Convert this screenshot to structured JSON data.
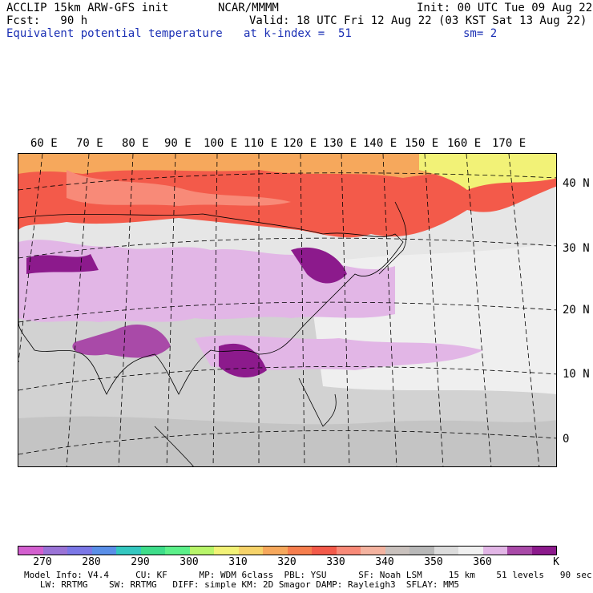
{
  "header": {
    "line1_left": "ACCLIP 15km ARW-GFS init",
    "line1_mid": "NCAR/MMMM",
    "line1_right": "Init: 00 UTC Tue 09 Aug 22",
    "line2_left": "Fcst:   90 h",
    "line2_right": "Valid: 18 UTC Fri 12 Aug 22 (03 KST Sat 13 Aug 22)",
    "line3_left": "Equivalent potential temperature",
    "line3_mid": "at k-index =  51",
    "line3_right": "sm= 2"
  },
  "map": {
    "longitude_labels": [
      "60 E",
      "70 E",
      "80 E",
      "90 E",
      "100 E",
      "110 E",
      "120 E",
      "130 E",
      "140 E",
      "150 E",
      "160 E",
      "170 E"
    ],
    "latitude_labels": [
      "40 N",
      "30 N",
      "20 N",
      "10 N",
      "0"
    ]
  },
  "colorbar": {
    "unit": "K",
    "tick_labels": [
      "270",
      "280",
      "290",
      "300",
      "310",
      "320",
      "330",
      "340",
      "350",
      "360"
    ],
    "colors": [
      "#d35fcf",
      "#9a73d6",
      "#7b77e6",
      "#5a8fe8",
      "#34c7c0",
      "#3edd8a",
      "#5cf08a",
      "#b8f56a",
      "#f2f277",
      "#f6d36a",
      "#f6a85c",
      "#f67e4e",
      "#f35a4a",
      "#f88a78",
      "#f4b3a0",
      "#c9c1bd",
      "#b8b8b8",
      "#dcdcdc",
      "#f0f0f0",
      "#e2b6e6",
      "#a94aa8",
      "#8c1a8c"
    ]
  },
  "footer": {
    "line1": "Model Info: V4.4     CU: KF      MP: WDM 6class  PBL: YSU      SF: Noah LSM     15 km    51 levels   90 sec",
    "line2": "   LW: RRTMG    SW: RRTMG   DIFF: simple KM: 2D Smagor DAMP: Rayleigh3  SFLAY: MM5"
  },
  "colors": {
    "title_blue": "#1a2fb4",
    "warm_band": "#f35a4a",
    "moist_purple": "#8c1a8c",
    "background_gray": "#dcdcdc"
  }
}
